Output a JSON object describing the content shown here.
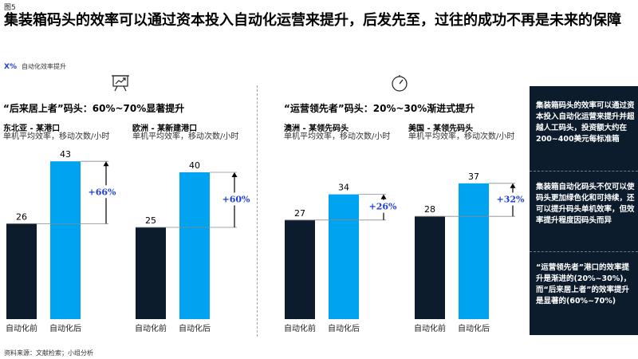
{
  "figure_label": "图5",
  "title": "集装箱码头的效率可以通过资本投入自动化运营来提升，后发先至，过往的成功不再是未来的保障",
  "legend": {
    "tag": "X%",
    "text": "自动化效率提升"
  },
  "sections": [
    {
      "heading": "“后来居上者”码头：60%~70%显著提升",
      "icon": "presentation-chart-icon"
    },
    {
      "heading": "“运营领先者”码头：20%~30%渐进式提升",
      "icon": "gauge-icon"
    }
  ],
  "metric_label": "单机平均效率，移动次数/小时",
  "source": "资料来源：文献检索；小组分析",
  "sidebar": [
    "集装箱码头的效率可以通过资本投入自动化运营来提升并超越人工码头，投资额大约在200~400美元每标准箱",
    "集装箱自动化码头不仅可以使码头更加绿色化和可持续，还可以提升码头单机效率，但效率提升程度因码头而异",
    "“运营领先者”港口的效率提升是渐进的(20%~30%)，而“后来居上者”的效率提升是显著的(60%~70%)"
  ],
  "colors": {
    "before": "#0d1c2c",
    "after": "#00a3f0",
    "accent": "#1f3fd6"
  },
  "chart_data": [
    {
      "type": "bar",
      "region": "东北亚 - 某港口",
      "categories": [
        "自动化前",
        "自动化后"
      ],
      "values": [
        26,
        43
      ],
      "increase": "+66%"
    },
    {
      "type": "bar",
      "region": "欧洲 - 某新建港口",
      "categories": [
        "自动化前",
        "自动化后"
      ],
      "values": [
        25,
        40
      ],
      "increase": "+60%"
    },
    {
      "type": "bar",
      "region": "澳洲 - 某领先码头",
      "categories": [
        "自动化前",
        "自动化后"
      ],
      "values": [
        27,
        34
      ],
      "increase": "+26%"
    },
    {
      "type": "bar",
      "region": "美国 - 某领先码头",
      "categories": [
        "自动化前",
        "自动化后"
      ],
      "values": [
        28,
        37
      ],
      "increase": "+32%"
    }
  ]
}
